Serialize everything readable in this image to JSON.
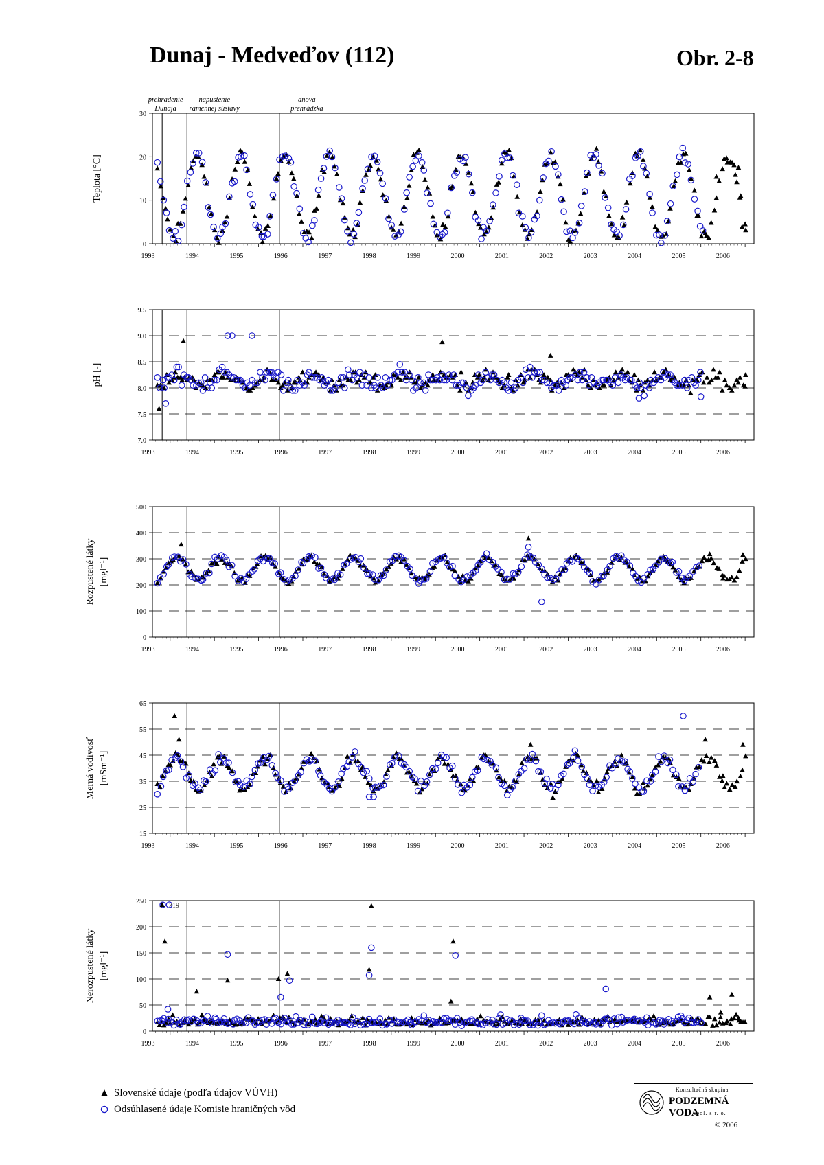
{
  "page": {
    "title": "Dunaj - Medveďov (112)",
    "figure_no": "Obr. 2-8"
  },
  "legend": {
    "slovak": "Slovenské údaje (podľa údajov VÚVH)",
    "commission": "Odsúhlasené údaje Komisie hraničných vôd"
  },
  "logo": {
    "line1": "Konzultačná skupina",
    "name": "PODZEMNÁ VODA",
    "line2": "spol. s r. o."
  },
  "copyright": "© 2006",
  "colors": {
    "slovak": "#000000",
    "commission": "#1a1acc",
    "grid": "#000000"
  },
  "events": [
    {
      "t": 1992.82,
      "label": [
        "prehradenie",
        "Dunaja"
      ]
    },
    {
      "t": 1993.38,
      "label": [
        "napustenie",
        "ramennej sústavy"
      ]
    },
    {
      "t": 1995.47,
      "label": [
        "dnová",
        "prehrádzka"
      ]
    }
  ],
  "chart_data": [
    {
      "type": "scatter",
      "ylabel": [
        "Teplota [°C]"
      ],
      "xlim": [
        1992.6,
        2006.2
      ],
      "ylim": [
        0,
        30
      ],
      "yticks": [
        0,
        10,
        20,
        30
      ],
      "yticklabels": [
        "0",
        "10",
        "20",
        "30"
      ],
      "xticks": [
        "1993",
        "1994",
        "1995",
        "1996",
        "1997",
        "1998",
        "1999",
        "2000",
        "2001",
        "2002",
        "2003",
        "2004",
        "2005",
        "2006"
      ],
      "grid": true,
      "gridlines": [
        10,
        20
      ],
      "events": [
        1992.82,
        1993.38,
        1995.47
      ],
      "model": {
        "kind": "sin",
        "mean": 11,
        "amp": 9.5,
        "peak": 0.6,
        "noise": 1.8,
        "min": 0.2,
        "max": 23.5
      },
      "series": [
        {
          "name": "Slovenské údaje (podľa údajov VÚVH)",
          "marker": "triangle",
          "n": 230,
          "start": 1992.72,
          "end": 2006.0,
          "seed": 11,
          "extra": [
            [
              2005.75,
              18.1
            ],
            [
              2005.85,
              17.5
            ],
            [
              2005.6,
              18.7
            ],
            [
              2006.0,
              4.5
            ],
            [
              2005.9,
              11.0
            ],
            [
              2005.35,
              15.4
            ],
            [
              2005.1,
              2.4
            ]
          ]
        },
        {
          "name": "Odsúhlasené údaje Komisie hraničných vôd",
          "marker": "circle",
          "n": 185,
          "start": 1992.72,
          "end": 2005.05,
          "seed": 17,
          "extra": []
        }
      ]
    },
    {
      "type": "scatter",
      "ylabel": [
        "pH [-]"
      ],
      "xlim": [
        1992.6,
        2006.2
      ],
      "ylim": [
        7.0,
        9.5
      ],
      "yticks": [
        7.0,
        7.5,
        8.0,
        8.5,
        9.0,
        9.5
      ],
      "yticklabels": [
        "7.0",
        "7.5",
        "8.0",
        "8.5",
        "9.0",
        "9.5"
      ],
      "xticks": [
        "1993",
        "1994",
        "1995",
        "1996",
        "1997",
        "1998",
        "1999",
        "2000",
        "2001",
        "2002",
        "2003",
        "2004",
        "2005",
        "2006"
      ],
      "grid": true,
      "gridlines": [
        7.5,
        8.0,
        8.5,
        9.0
      ],
      "events": [
        1992.82,
        1993.38,
        1995.47
      ],
      "model": {
        "kind": "flat",
        "mean": 8.15,
        "amp": 0.1,
        "peak": 0.2,
        "noise": 0.15,
        "min": 7.6,
        "max": 8.7
      },
      "series": [
        {
          "name": "Slovenské údaje (podľa údajov VÚVH)",
          "marker": "triangle",
          "n": 260,
          "start": 1992.72,
          "end": 2006.0,
          "seed": 23,
          "extra": [
            [
              1993.3,
              8.9
            ],
            [
              1999.15,
              8.88
            ],
            [
              1992.75,
              7.6
            ],
            [
              2001.6,
              8.62
            ],
            [
              2006.0,
              8.03
            ]
          ]
        },
        {
          "name": "Odsúhlasené údaje Komisie hraničných vôd",
          "marker": "circle",
          "n": 230,
          "start": 1992.72,
          "end": 2005.0,
          "seed": 29,
          "extra": [
            [
              1994.3,
              9.0
            ],
            [
              1994.4,
              9.0
            ],
            [
              1994.85,
              9.0
            ],
            [
              1992.9,
              7.7
            ],
            [
              2003.6,
              7.8
            ],
            [
              2005.0,
              7.83
            ]
          ]
        }
      ]
    },
    {
      "type": "scatter",
      "ylabel": [
        "Rozpustené látky",
        "[mgl⁻¹]"
      ],
      "xlim": [
        1992.6,
        2006.2
      ],
      "ylim": [
        0,
        500
      ],
      "yticks": [
        0,
        100,
        200,
        300,
        400,
        500
      ],
      "yticklabels": [
        "0",
        "100",
        "200",
        "300",
        "400",
        "500"
      ],
      "xticks": [
        "1993",
        "1994",
        "1995",
        "1996",
        "1997",
        "1998",
        "1999",
        "2000",
        "2001",
        "2002",
        "2003",
        "2004",
        "2005",
        "2006"
      ],
      "grid": true,
      "gridlines": [
        100,
        200,
        300,
        400
      ],
      "events": [
        1993.38,
        1995.47
      ],
      "model": {
        "kind": "sin",
        "mean": 262,
        "amp": 45,
        "peak": 0.15,
        "noise": 14,
        "min": 180,
        "max": 380
      },
      "series": [
        {
          "name": "Slovenské údaje (podľa údajov VÚVH)",
          "marker": "triangle",
          "n": 230,
          "start": 1992.72,
          "end": 2006.0,
          "seed": 31,
          "extra": [
            [
              2001.1,
              378
            ],
            [
              2005.2,
              318
            ],
            [
              2005.95,
              315
            ],
            [
              2005.5,
              225
            ],
            [
              1993.25,
              355
            ]
          ]
        },
        {
          "name": "Odsúhlasené údaje Komisie hraničných vôd",
          "marker": "circle",
          "n": 190,
          "start": 1992.72,
          "end": 2004.95,
          "seed": 37,
          "extra": [
            [
              2001.4,
              135
            ],
            [
              2001.1,
              345
            ]
          ]
        }
      ]
    },
    {
      "type": "scatter",
      "ylabel": [
        "Merná vodivosť",
        "[mSm⁻¹]"
      ],
      "xlim": [
        1992.6,
        2006.2
      ],
      "ylim": [
        15,
        65
      ],
      "yticks": [
        15,
        25,
        35,
        45,
        55,
        65
      ],
      "yticklabels": [
        "15",
        "25",
        "35",
        "45",
        "55",
        "65"
      ],
      "xticks": [
        "1993",
        "1994",
        "1995",
        "1996",
        "1997",
        "1998",
        "1999",
        "2000",
        "2001",
        "2002",
        "2003",
        "2004",
        "2005",
        "2006"
      ],
      "grid": true,
      "gridlines": [
        25,
        35,
        45,
        55
      ],
      "events": [
        1993.38,
        1995.47
      ],
      "model": {
        "kind": "sin",
        "mean": 38,
        "amp": 6,
        "peak": 0.15,
        "noise": 2.2,
        "min": 28,
        "max": 50
      },
      "series": [
        {
          "name": "Slovenské údaje (podľa údajov VÚVH)",
          "marker": "triangle",
          "n": 230,
          "start": 1992.72,
          "end": 2006.0,
          "seed": 41,
          "extra": [
            [
              1993.1,
              60
            ],
            [
              1993.2,
              51
            ],
            [
              2005.1,
              51
            ],
            [
              2005.95,
              49
            ],
            [
              2005.5,
              37
            ],
            [
              2001.15,
              49
            ]
          ]
        },
        {
          "name": "Odsúhlasené údaje Komisie hraničných vôd",
          "marker": "circle",
          "n": 190,
          "start": 1992.72,
          "end": 2004.95,
          "seed": 43,
          "extra": [
            [
              2004.6,
              60
            ],
            [
              1997.5,
              29
            ],
            [
              1997.6,
              29
            ]
          ]
        }
      ]
    },
    {
      "type": "scatter",
      "ylabel": [
        "Nerozpustené látky",
        "[mgl⁻¹]"
      ],
      "xlim": [
        1992.6,
        2006.2
      ],
      "ylim": [
        0,
        250
      ],
      "yticks": [
        0,
        50,
        100,
        150,
        200,
        250
      ],
      "yticklabels": [
        "0",
        "50",
        "100",
        "150",
        "200",
        "250"
      ],
      "xticks": [
        "1993",
        "1994",
        "1995",
        "1996",
        "1997",
        "1998",
        "1999",
        "2000",
        "2001",
        "2002",
        "2003",
        "2004",
        "2005",
        "2006"
      ],
      "grid": true,
      "gridlines": [
        50,
        100,
        150,
        200
      ],
      "events": [
        1993.38,
        1995.47
      ],
      "annotation": "319",
      "model": {
        "kind": "skew",
        "mean": 14,
        "amp": 0,
        "peak": 0,
        "noise": 10,
        "min": 1,
        "max": 48
      },
      "series": [
        {
          "name": "Slovenské údaje (podľa údajov VÚVH)",
          "marker": "triangle",
          "n": 270,
          "start": 1992.72,
          "end": 2006.0,
          "seed": 53,
          "extra": [
            [
              1992.82,
              242
            ],
            [
              1992.88,
              172
            ],
            [
              1997.55,
              240
            ],
            [
              1997.5,
              118
            ],
            [
              1999.4,
              172
            ],
            [
              1995.65,
              110
            ],
            [
              1994.3,
              97
            ],
            [
              1995.45,
              100
            ],
            [
              1993.6,
              76
            ],
            [
              2005.2,
              65
            ],
            [
              2005.7,
              70
            ],
            [
              1999.35,
              57
            ],
            [
              2005.45,
              36
            ],
            [
              2005.85,
              25
            ]
          ]
        },
        {
          "name": "Odsúhlasené údaje Komisie hraničných vôd",
          "marker": "circle",
          "n": 240,
          "start": 1992.72,
          "end": 2005.0,
          "seed": 59,
          "extra": [
            [
              1992.98,
              242
            ],
            [
              1994.3,
              147
            ],
            [
              1997.55,
              160
            ],
            [
              1997.5,
              107
            ],
            [
              1999.45,
              145
            ],
            [
              1995.7,
              97
            ],
            [
              1995.5,
              65
            ],
            [
              2002.85,
              81
            ],
            [
              1992.95,
              42
            ]
          ]
        }
      ]
    }
  ]
}
